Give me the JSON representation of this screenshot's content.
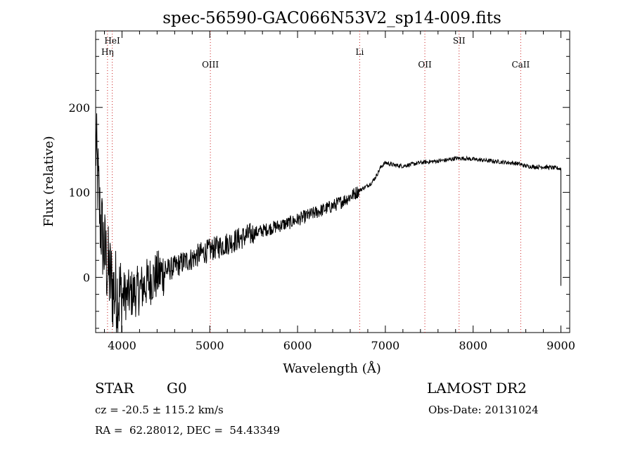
{
  "chart_data": {
    "type": "line",
    "title": "spec-56590-GAC066N53V2_sp14-009.fits",
    "xlabel": "Wavelength (Å)",
    "ylabel": "Flux (relative)",
    "xlim": [
      3700,
      9100
    ],
    "ylim": [
      -65,
      290
    ],
    "x_ticks": [
      4000,
      5000,
      6000,
      7000,
      8000,
      9000
    ],
    "y_ticks": [
      0,
      100,
      200
    ],
    "grid": false,
    "line_color": "#000000",
    "marker_color": "#cc2222",
    "spectral_lines": [
      {
        "label": "HeI",
        "x": 3889
      },
      {
        "label": "Hη",
        "x": 3835
      },
      {
        "label": "OIII",
        "x": 5007
      },
      {
        "label": "Li",
        "x": 6708
      },
      {
        "label": "OII",
        "x": 7450
      },
      {
        "label": "SII",
        "x": 7840
      },
      {
        "label": "CaII",
        "x": 8542
      }
    ],
    "series": [
      {
        "x": [
          3700,
          3750,
          3800,
          3850,
          3900,
          3950,
          4000,
          4100,
          4200,
          4300,
          4400,
          4500,
          4600,
          4700,
          4800,
          4900,
          5000,
          5100,
          5200,
          5300,
          5400,
          5500,
          5600,
          5700,
          5800,
          5900,
          6000,
          6100,
          6200,
          6300,
          6400,
          6500,
          6600,
          6700,
          6800,
          6850,
          6900,
          6950,
          7000,
          7100,
          7200,
          7300,
          7400,
          7500,
          7600,
          7700,
          7800,
          7900,
          8000,
          8100,
          8200,
          8300,
          8400,
          8500,
          8600,
          8700,
          8800,
          8900,
          9000
        ],
        "y": [
          160,
          70,
          30,
          5,
          -15,
          -20,
          -22,
          -20,
          -15,
          -5,
          2,
          8,
          12,
          18,
          22,
          28,
          32,
          36,
          40,
          44,
          48,
          52,
          55,
          58,
          61,
          64,
          68,
          72,
          76,
          80,
          84,
          89,
          95,
          102,
          108,
          112,
          120,
          130,
          135,
          132,
          131,
          133,
          135,
          136,
          137,
          138,
          140,
          140,
          139,
          138,
          137,
          136,
          135,
          134,
          131,
          130,
          130,
          129,
          128
        ]
      }
    ]
  },
  "info": {
    "object_class": "STAR",
    "subclass": "G0",
    "survey": "LAMOST DR2",
    "redshift_text": "cz = -20.5 ± 115.2 km/s",
    "obs_date": "Obs-Date: 20131024",
    "coords": "RA =  62.28012, DEC =  54.43349"
  }
}
